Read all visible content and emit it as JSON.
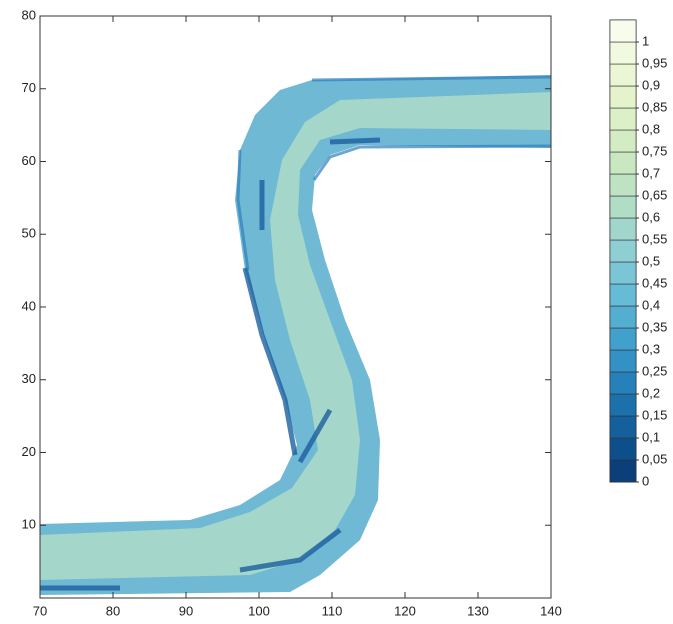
{
  "chart_data": {
    "type": "contour",
    "xlim": [
      70,
      140
    ],
    "xticks": [
      70,
      80,
      90,
      100,
      110,
      120,
      130,
      140
    ],
    "ylim": [
      0,
      80
    ],
    "yticks": [
      10,
      20,
      30,
      40,
      50,
      60,
      70,
      80
    ],
    "colorbar": {
      "lim": [
        0,
        1.05
      ],
      "ticks": [
        0,
        {
          "value": 0.05,
          "label": "0,05"
        },
        {
          "value": 0.1,
          "label": "0,1"
        },
        {
          "value": 0.15,
          "label": "0,15"
        },
        {
          "value": 0.2,
          "label": "0,2"
        },
        {
          "value": 0.25,
          "label": "0,25"
        },
        {
          "value": 0.3,
          "label": "0,3"
        },
        {
          "value": 0.35,
          "label": "0,35"
        },
        {
          "value": 0.4,
          "label": "0,4"
        },
        {
          "value": 0.45,
          "label": "0,45"
        },
        {
          "value": 0.5,
          "label": "0,5"
        },
        {
          "value": 0.55,
          "label": "0,55"
        },
        {
          "value": 0.6,
          "label": "0,6"
        },
        {
          "value": 0.65,
          "label": "0,65"
        },
        {
          "value": 0.7,
          "label": "0,7"
        },
        {
          "value": 0.75,
          "label": "0,75"
        },
        {
          "value": 0.8,
          "label": "0,8"
        },
        {
          "value": 0.85,
          "label": "0,85"
        },
        {
          "value": 0.9,
          "label": "0,9"
        },
        {
          "value": 0.95,
          "label": "0,95"
        },
        1
      ],
      "colors": [
        "#0a3f7a",
        "#0d4f8b",
        "#14609c",
        "#1c70ac",
        "#2681ba",
        "#3391c5",
        "#42a0cc",
        "#53aed2",
        "#66bbd6",
        "#7ac6d6",
        "#8ecfd3",
        "#a0d6cc",
        "#afddc6",
        "#bde3c2",
        "#c9e8c2",
        "#d3ecc3",
        "#dcf0c7",
        "#e4f3cc",
        "#ebf6d5",
        "#f1f9e0",
        "#f7fcec"
      ]
    }
  }
}
